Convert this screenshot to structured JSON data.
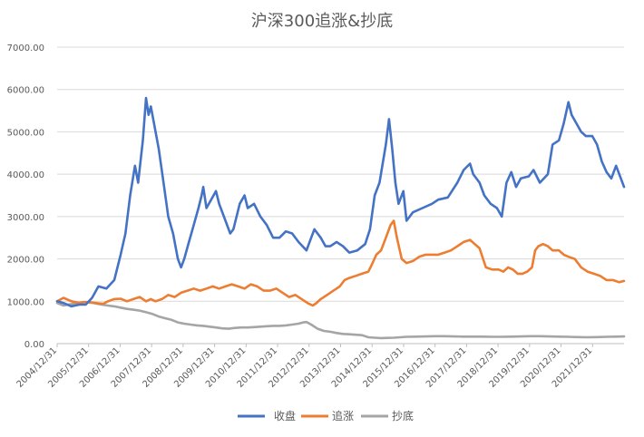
{
  "chart_data": {
    "type": "line",
    "title": "沪深300追涨&抄底",
    "xlabel": "",
    "ylabel": "",
    "ylim": [
      0,
      7000
    ],
    "y_ticks": [
      "0.00",
      "1000.00",
      "2000.00",
      "3000.00",
      "4000.00",
      "5000.00",
      "6000.00",
      "7000.00"
    ],
    "x_ticks": [
      "2004/12/31",
      "2005/12/31",
      "2006/12/31",
      "2007/12/31",
      "2008/12/31",
      "2009/12/31",
      "2010/12/31",
      "2011/12/31",
      "2012/12/31",
      "2013/12/31",
      "2014/12/31",
      "2015/12/31",
      "2016/12/31",
      "2017/12/31",
      "2018/12/31",
      "2019/12/31",
      "2020/12/31",
      "2021/12/31"
    ],
    "grid": "horizontal",
    "legend_position": "bottom",
    "x_range": [
      2005.0,
      2022.85
    ],
    "series": [
      {
        "name": "收盘",
        "color": "#4472C4",
        "points": [
          [
            2005.0,
            1000
          ],
          [
            2005.2,
            960
          ],
          [
            2005.45,
            880
          ],
          [
            2005.7,
            920
          ],
          [
            2005.9,
            920
          ],
          [
            2006.1,
            1080
          ],
          [
            2006.3,
            1350
          ],
          [
            2006.55,
            1300
          ],
          [
            2006.8,
            1500
          ],
          [
            2007.0,
            2100
          ],
          [
            2007.15,
            2600
          ],
          [
            2007.3,
            3500
          ],
          [
            2007.45,
            4200
          ],
          [
            2007.55,
            3800
          ],
          [
            2007.7,
            4800
          ],
          [
            2007.8,
            5800
          ],
          [
            2007.88,
            5400
          ],
          [
            2007.95,
            5600
          ],
          [
            2008.05,
            5200
          ],
          [
            2008.2,
            4600
          ],
          [
            2008.35,
            3800
          ],
          [
            2008.5,
            3000
          ],
          [
            2008.65,
            2600
          ],
          [
            2008.8,
            2000
          ],
          [
            2008.9,
            1800
          ],
          [
            2009.0,
            2000
          ],
          [
            2009.15,
            2400
          ],
          [
            2009.3,
            2800
          ],
          [
            2009.45,
            3200
          ],
          [
            2009.55,
            3500
          ],
          [
            2009.6,
            3700
          ],
          [
            2009.7,
            3200
          ],
          [
            2009.85,
            3400
          ],
          [
            2010.0,
            3600
          ],
          [
            2010.1,
            3300
          ],
          [
            2010.3,
            2900
          ],
          [
            2010.45,
            2600
          ],
          [
            2010.55,
            2700
          ],
          [
            2010.75,
            3300
          ],
          [
            2010.9,
            3500
          ],
          [
            2011.0,
            3200
          ],
          [
            2011.2,
            3300
          ],
          [
            2011.4,
            3000
          ],
          [
            2011.6,
            2800
          ],
          [
            2011.8,
            2500
          ],
          [
            2012.0,
            2500
          ],
          [
            2012.2,
            2650
          ],
          [
            2012.4,
            2600
          ],
          [
            2012.6,
            2400
          ],
          [
            2012.85,
            2200
          ],
          [
            2013.0,
            2500
          ],
          [
            2013.1,
            2700
          ],
          [
            2013.3,
            2500
          ],
          [
            2013.45,
            2300
          ],
          [
            2013.6,
            2300
          ],
          [
            2013.8,
            2400
          ],
          [
            2014.0,
            2300
          ],
          [
            2014.2,
            2150
          ],
          [
            2014.45,
            2200
          ],
          [
            2014.7,
            2350
          ],
          [
            2014.85,
            2700
          ],
          [
            2015.0,
            3500
          ],
          [
            2015.15,
            3800
          ],
          [
            2015.35,
            4700
          ],
          [
            2015.45,
            5300
          ],
          [
            2015.55,
            4600
          ],
          [
            2015.65,
            3800
          ],
          [
            2015.75,
            3300
          ],
          [
            2015.9,
            3600
          ],
          [
            2016.0,
            2900
          ],
          [
            2016.2,
            3100
          ],
          [
            2016.5,
            3200
          ],
          [
            2016.8,
            3300
          ],
          [
            2017.0,
            3400
          ],
          [
            2017.3,
            3450
          ],
          [
            2017.6,
            3800
          ],
          [
            2017.8,
            4100
          ],
          [
            2018.0,
            4250
          ],
          [
            2018.1,
            4000
          ],
          [
            2018.3,
            3800
          ],
          [
            2018.45,
            3500
          ],
          [
            2018.65,
            3300
          ],
          [
            2018.85,
            3200
          ],
          [
            2019.0,
            3000
          ],
          [
            2019.15,
            3800
          ],
          [
            2019.3,
            4050
          ],
          [
            2019.45,
            3700
          ],
          [
            2019.6,
            3900
          ],
          [
            2019.85,
            3950
          ],
          [
            2020.0,
            4100
          ],
          [
            2020.2,
            3800
          ],
          [
            2020.45,
            4000
          ],
          [
            2020.6,
            4700
          ],
          [
            2020.8,
            4800
          ],
          [
            2020.95,
            5200
          ],
          [
            2021.1,
            5700
          ],
          [
            2021.2,
            5400
          ],
          [
            2021.35,
            5200
          ],
          [
            2021.5,
            5000
          ],
          [
            2021.65,
            4900
          ],
          [
            2021.85,
            4900
          ],
          [
            2022.0,
            4700
          ],
          [
            2022.15,
            4300
          ],
          [
            2022.3,
            4050
          ],
          [
            2022.45,
            3900
          ],
          [
            2022.6,
            4200
          ],
          [
            2022.75,
            3900
          ],
          [
            2022.85,
            3700
          ]
        ]
      },
      {
        "name": "追涨",
        "color": "#ED7D31",
        "points": [
          [
            2005.0,
            1000
          ],
          [
            2005.2,
            1080
          ],
          [
            2005.45,
            1000
          ],
          [
            2005.7,
            960
          ],
          [
            2005.9,
            980
          ],
          [
            2006.1,
            970
          ],
          [
            2006.3,
            950
          ],
          [
            2006.45,
            940
          ],
          [
            2006.6,
            1000
          ],
          [
            2006.8,
            1050
          ],
          [
            2007.0,
            1060
          ],
          [
            2007.2,
            1000
          ],
          [
            2007.4,
            1050
          ],
          [
            2007.6,
            1100
          ],
          [
            2007.8,
            1000
          ],
          [
            2007.95,
            1050
          ],
          [
            2008.1,
            1000
          ],
          [
            2008.3,
            1050
          ],
          [
            2008.5,
            1150
          ],
          [
            2008.7,
            1100
          ],
          [
            2008.9,
            1200
          ],
          [
            2009.1,
            1250
          ],
          [
            2009.3,
            1300
          ],
          [
            2009.5,
            1250
          ],
          [
            2009.7,
            1300
          ],
          [
            2009.9,
            1350
          ],
          [
            2010.1,
            1300
          ],
          [
            2010.3,
            1350
          ],
          [
            2010.5,
            1400
          ],
          [
            2010.7,
            1350
          ],
          [
            2010.9,
            1300
          ],
          [
            2011.1,
            1400
          ],
          [
            2011.3,
            1350
          ],
          [
            2011.5,
            1250
          ],
          [
            2011.7,
            1250
          ],
          [
            2011.9,
            1300
          ],
          [
            2012.1,
            1200
          ],
          [
            2012.3,
            1100
          ],
          [
            2012.5,
            1150
          ],
          [
            2012.7,
            1050
          ],
          [
            2012.9,
            950
          ],
          [
            2013.05,
            900
          ],
          [
            2013.15,
            950
          ],
          [
            2013.3,
            1050
          ],
          [
            2013.5,
            1150
          ],
          [
            2013.7,
            1250
          ],
          [
            2013.9,
            1350
          ],
          [
            2014.05,
            1500
          ],
          [
            2014.2,
            1550
          ],
          [
            2014.4,
            1600
          ],
          [
            2014.6,
            1650
          ],
          [
            2014.8,
            1700
          ],
          [
            2014.9,
            1850
          ],
          [
            2015.05,
            2100
          ],
          [
            2015.2,
            2200
          ],
          [
            2015.35,
            2500
          ],
          [
            2015.5,
            2800
          ],
          [
            2015.6,
            2900
          ],
          [
            2015.7,
            2500
          ],
          [
            2015.85,
            2000
          ],
          [
            2016.0,
            1900
          ],
          [
            2016.2,
            1950
          ],
          [
            2016.4,
            2050
          ],
          [
            2016.6,
            2100
          ],
          [
            2016.8,
            2100
          ],
          [
            2017.0,
            2100
          ],
          [
            2017.2,
            2150
          ],
          [
            2017.4,
            2200
          ],
          [
            2017.6,
            2300
          ],
          [
            2017.8,
            2400
          ],
          [
            2018.0,
            2450
          ],
          [
            2018.15,
            2350
          ],
          [
            2018.3,
            2250
          ],
          [
            2018.5,
            1800
          ],
          [
            2018.7,
            1750
          ],
          [
            2018.9,
            1750
          ],
          [
            2019.05,
            1700
          ],
          [
            2019.2,
            1800
          ],
          [
            2019.35,
            1750
          ],
          [
            2019.5,
            1650
          ],
          [
            2019.65,
            1650
          ],
          [
            2019.8,
            1700
          ],
          [
            2019.95,
            1800
          ],
          [
            2020.05,
            2200
          ],
          [
            2020.15,
            2300
          ],
          [
            2020.3,
            2350
          ],
          [
            2020.45,
            2300
          ],
          [
            2020.6,
            2200
          ],
          [
            2020.8,
            2200
          ],
          [
            2020.95,
            2100
          ],
          [
            2021.1,
            2050
          ],
          [
            2021.3,
            2000
          ],
          [
            2021.5,
            1800
          ],
          [
            2021.7,
            1700
          ],
          [
            2021.9,
            1650
          ],
          [
            2022.1,
            1600
          ],
          [
            2022.3,
            1500
          ],
          [
            2022.5,
            1500
          ],
          [
            2022.7,
            1450
          ],
          [
            2022.85,
            1480
          ]
        ]
      },
      {
        "name": "抄底",
        "color": "#A5A5A5",
        "points": [
          [
            2005.0,
            960
          ],
          [
            2005.2,
            900
          ],
          [
            2005.4,
            930
          ],
          [
            2005.6,
            950
          ],
          [
            2005.8,
            980
          ],
          [
            2006.0,
            980
          ],
          [
            2006.2,
            950
          ],
          [
            2006.4,
            920
          ],
          [
            2006.6,
            900
          ],
          [
            2006.8,
            880
          ],
          [
            2007.0,
            850
          ],
          [
            2007.2,
            820
          ],
          [
            2007.4,
            800
          ],
          [
            2007.6,
            780
          ],
          [
            2007.8,
            740
          ],
          [
            2008.0,
            700
          ],
          [
            2008.2,
            640
          ],
          [
            2008.4,
            600
          ],
          [
            2008.6,
            560
          ],
          [
            2008.8,
            500
          ],
          [
            2009.0,
            470
          ],
          [
            2009.2,
            450
          ],
          [
            2009.4,
            430
          ],
          [
            2009.6,
            420
          ],
          [
            2009.8,
            400
          ],
          [
            2010.0,
            380
          ],
          [
            2010.2,
            360
          ],
          [
            2010.4,
            350
          ],
          [
            2010.6,
            370
          ],
          [
            2010.8,
            380
          ],
          [
            2011.0,
            380
          ],
          [
            2011.2,
            390
          ],
          [
            2011.4,
            400
          ],
          [
            2011.6,
            410
          ],
          [
            2011.8,
            420
          ],
          [
            2012.0,
            420
          ],
          [
            2012.2,
            430
          ],
          [
            2012.4,
            450
          ],
          [
            2012.6,
            470
          ],
          [
            2012.75,
            500
          ],
          [
            2012.85,
            510
          ],
          [
            2013.0,
            450
          ],
          [
            2013.2,
            350
          ],
          [
            2013.4,
            300
          ],
          [
            2013.6,
            280
          ],
          [
            2013.8,
            250
          ],
          [
            2014.0,
            230
          ],
          [
            2014.2,
            220
          ],
          [
            2014.4,
            210
          ],
          [
            2014.6,
            200
          ],
          [
            2014.8,
            150
          ],
          [
            2015.0,
            140
          ],
          [
            2015.2,
            130
          ],
          [
            2015.4,
            135
          ],
          [
            2015.6,
            140
          ],
          [
            2015.8,
            150
          ],
          [
            2016.0,
            160
          ],
          [
            2016.3,
            165
          ],
          [
            2016.6,
            170
          ],
          [
            2016.9,
            175
          ],
          [
            2017.2,
            175
          ],
          [
            2017.5,
            170
          ],
          [
            2017.8,
            165
          ],
          [
            2018.1,
            165
          ],
          [
            2018.4,
            165
          ],
          [
            2018.7,
            160
          ],
          [
            2019.0,
            160
          ],
          [
            2019.3,
            165
          ],
          [
            2019.6,
            170
          ],
          [
            2019.9,
            175
          ],
          [
            2020.2,
            175
          ],
          [
            2020.5,
            170
          ],
          [
            2020.8,
            165
          ],
          [
            2021.1,
            160
          ],
          [
            2021.4,
            155
          ],
          [
            2021.7,
            150
          ],
          [
            2022.0,
            155
          ],
          [
            2022.3,
            160
          ],
          [
            2022.6,
            165
          ],
          [
            2022.85,
            170
          ]
        ]
      }
    ]
  }
}
